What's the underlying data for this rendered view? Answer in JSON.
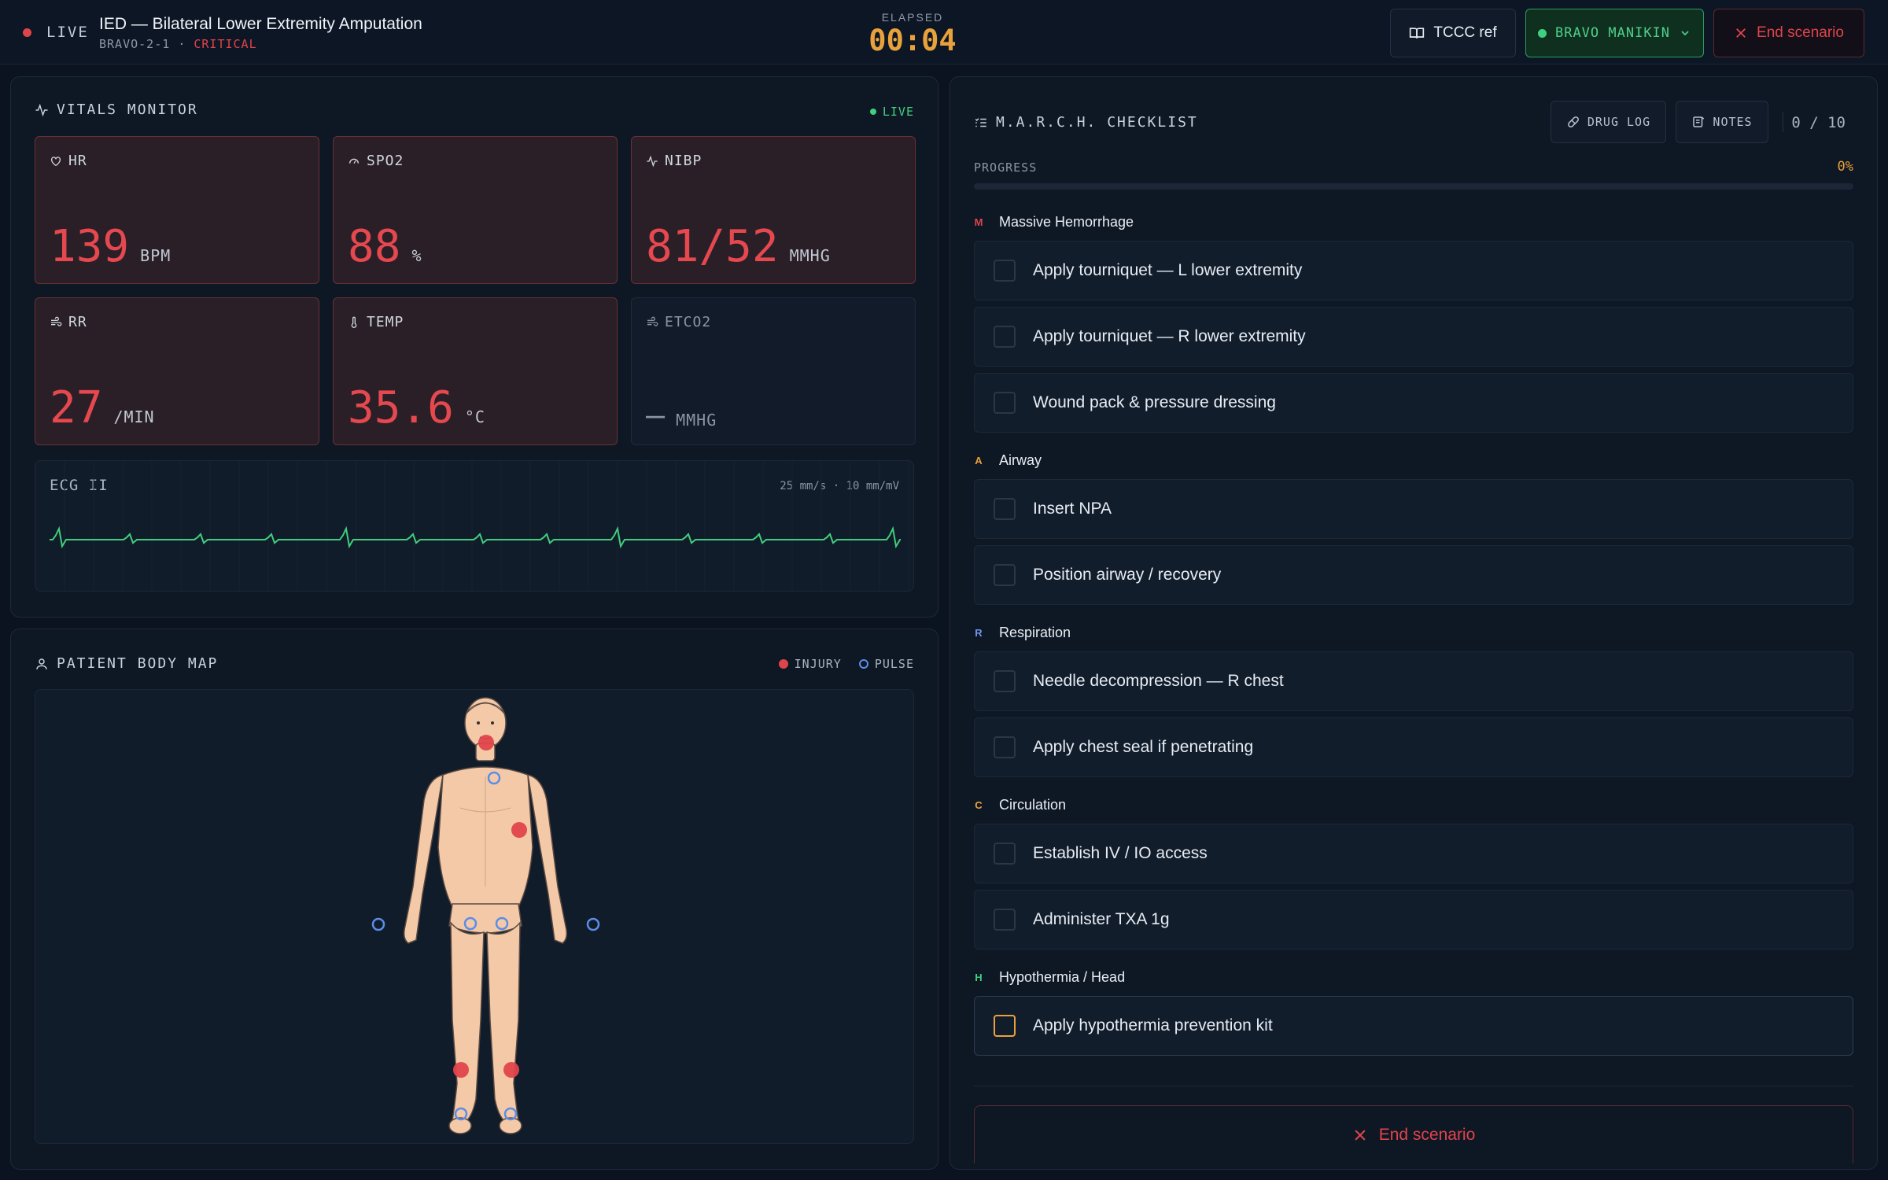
{
  "header": {
    "live_label": "LIVE",
    "title": "IED — Bilateral Lower Extremity Amputation",
    "scenario_id": "BRAVO-2-1",
    "separator": "·",
    "severity": "CRITICAL",
    "elapsed_label": "ELAPSED",
    "elapsed_value": "00:04",
    "tccc_label": "TCCC ref",
    "manikin_label": "BRAVO MANIKIN",
    "end_label": "End scenario"
  },
  "vitals": {
    "title": "VITALS MONITOR",
    "live": "LIVE",
    "cards": [
      {
        "label": "HR",
        "value": "139",
        "unit": "BPM",
        "icon": "heart-icon",
        "alarm": true
      },
      {
        "label": "SPO2",
        "value": "88",
        "unit": "%",
        "icon": "gauge-icon",
        "alarm": true
      },
      {
        "label": "NIBP",
        "value": "81/52",
        "unit": "MMHG",
        "icon": "pulse-icon",
        "alarm": true
      },
      {
        "label": "RR",
        "value": "27",
        "unit": "/MIN",
        "icon": "wind-icon",
        "alarm": true
      },
      {
        "label": "TEMP",
        "value": "35.6",
        "unit": "°C",
        "icon": "thermometer-icon",
        "alarm": true
      },
      {
        "label": "ETCO2",
        "value": "—",
        "unit": "MMHG",
        "icon": "wind-icon",
        "alarm": false
      }
    ],
    "ecg": {
      "label": "ECG II",
      "scale": "25 mm/s · 10 mm/mV"
    }
  },
  "body_map": {
    "title": "PATIENT BODY MAP",
    "legend_injury": "INJURY",
    "legend_pulse": "PULSE"
  },
  "march": {
    "title": "M.A.R.C.H. CHECKLIST",
    "drug_log_label": "DRUG LOG",
    "notes_label": "NOTES",
    "count": "0 / 10",
    "progress_label": "PROGRESS",
    "progress_pct": "0%",
    "progress_value": 0,
    "sections": [
      {
        "letter": "M",
        "name": "Massive Hemorrhage",
        "tasks": [
          "Apply tourniquet — L lower extremity",
          "Apply tourniquet — R lower extremity",
          "Wound pack & pressure dressing"
        ]
      },
      {
        "letter": "A",
        "name": "Airway",
        "tasks": [
          "Insert NPA",
          "Position airway / recovery"
        ]
      },
      {
        "letter": "R",
        "name": "Respiration",
        "tasks": [
          "Needle decompression — R chest",
          "Apply chest seal if penetrating"
        ]
      },
      {
        "letter": "C",
        "name": "Circulation",
        "tasks": [
          "Establish IV / IO access",
          "Administer TXA 1g"
        ]
      },
      {
        "letter": "H",
        "name": "Hypothermia / Head",
        "tasks": [
          "Apply hypothermia prevention kit"
        ]
      }
    ],
    "end_label": "End scenario"
  },
  "colors": {
    "alarm": "#e5484f",
    "accent": "#e9a23b",
    "ok": "#3fd17f",
    "pulse": "#5b8de6",
    "letter_M": "#e0444b",
    "letter_A": "#e9a23b",
    "letter_R": "#6f95ea",
    "letter_C": "#e9a23b",
    "letter_H": "#3fd17f"
  }
}
